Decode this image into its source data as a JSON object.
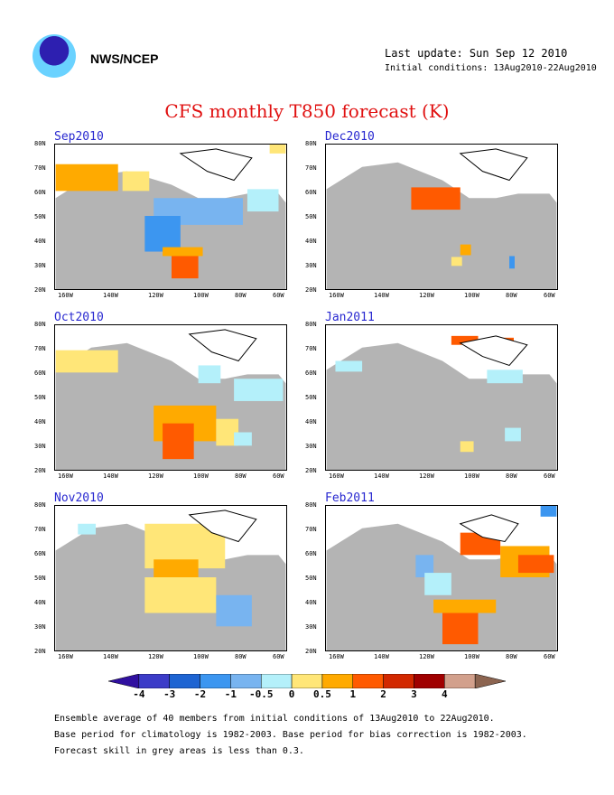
{
  "header": {
    "agency": "NWS/NCEP",
    "last_update": "Last update: Sun Sep 12 2010",
    "initial_conditions": "Initial conditions: 13Aug2010-22Aug2010"
  },
  "title": "CFS monthly T850 forecast (K)",
  "axes": {
    "lat_labels": [
      "80N",
      "70N",
      "60N",
      "50N",
      "40N",
      "30N",
      "20N"
    ],
    "lon_labels": [
      "160W",
      "140W",
      "120W",
      "100W",
      "80W",
      "60W"
    ]
  },
  "panels": [
    {
      "label": "Sep2010"
    },
    {
      "label": "Dec2010"
    },
    {
      "label": "Oct2010"
    },
    {
      "label": "Jan2011"
    },
    {
      "label": "Nov2010"
    },
    {
      "label": "Feb2011"
    }
  ],
  "colorbar": {
    "colors": [
      "#3010a0",
      "#3c3cc8",
      "#1e64d2",
      "#3c96f0",
      "#78b4f0",
      "#b4f0fa",
      "#ffe678",
      "#ffaa00",
      "#ff5a00",
      "#d22800",
      "#a00000",
      "#d2a08c",
      "#8c6450"
    ],
    "labels": [
      "-4",
      "-3",
      "-2",
      "-1",
      "-0.5",
      "0",
      "0.5",
      "1",
      "2",
      "3",
      "4"
    ]
  },
  "footer": [
    "Ensemble average of 40 members from initial conditions of 13Aug2010 to 22Aug2010.",
    "Base period for climatology is 1982-2003. Base period for bias correction is 1982-2003.",
    "Forecast skill in grey areas is less than 0.3."
  ]
}
